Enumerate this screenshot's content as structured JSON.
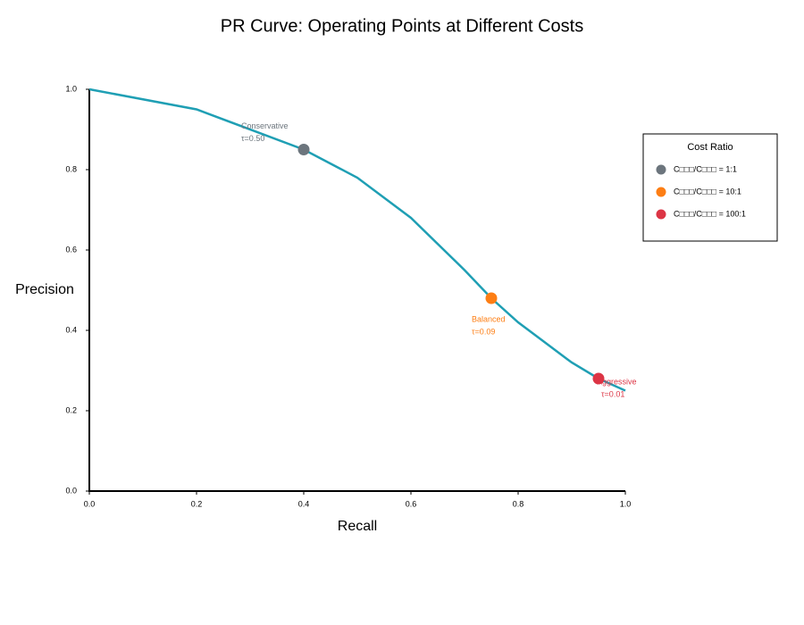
{
  "chart_data": {
    "type": "line",
    "title": "PR Curve: Operating Points at Different Costs",
    "x_label": "Recall",
    "y_label": "Precision",
    "x": [
      0,
      0.2,
      0.4,
      0.5,
      0.6,
      0.7,
      0.75,
      0.8,
      0.9,
      0.95,
      1.0
    ],
    "series": [
      {
        "color": "#1f9fb4",
        "values": [
          1.0,
          0.95,
          0.85,
          0.78,
          0.68,
          0.55,
          0.48,
          0.42,
          0.32,
          0.28,
          0.25
        ]
      }
    ],
    "points": [
      {
        "name": "C□□□/C□□□ = 1:1",
        "color": "#6c757d",
        "x": 0.4,
        "y": 0.85,
        "label": "Conservative",
        "threshold": "τ=0.50"
      },
      {
        "name": "C□□□/C□□□ = 10:1",
        "color": "#fd7e14",
        "x": 0.75,
        "y": 0.48,
        "label": "Balanced",
        "threshold": "τ=0.09"
      },
      {
        "name": "C□□□/C□□□ = 100:1",
        "color": "#dc3545",
        "x": 0.95,
        "y": 0.28,
        "label": "Aggressive",
        "threshold": "τ=0.01"
      }
    ],
    "legend_title": "Cost Ratio",
    "legend": "right",
    "xlim": [
      0,
      1
    ],
    "ylim": [
      0,
      1
    ],
    "xticks": [
      {
        "value": 0,
        "label": "0.0"
      },
      0.2,
      0.4,
      0.6,
      0.8,
      {
        "value": 1,
        "label": "1.0"
      }
    ],
    "yticks": [
      {
        "value": 0,
        "label": "0.0"
      },
      0.2,
      0.4,
      0.6,
      0.8,
      {
        "value": 1,
        "label": "1.0"
      }
    ],
    "grid": false
  }
}
